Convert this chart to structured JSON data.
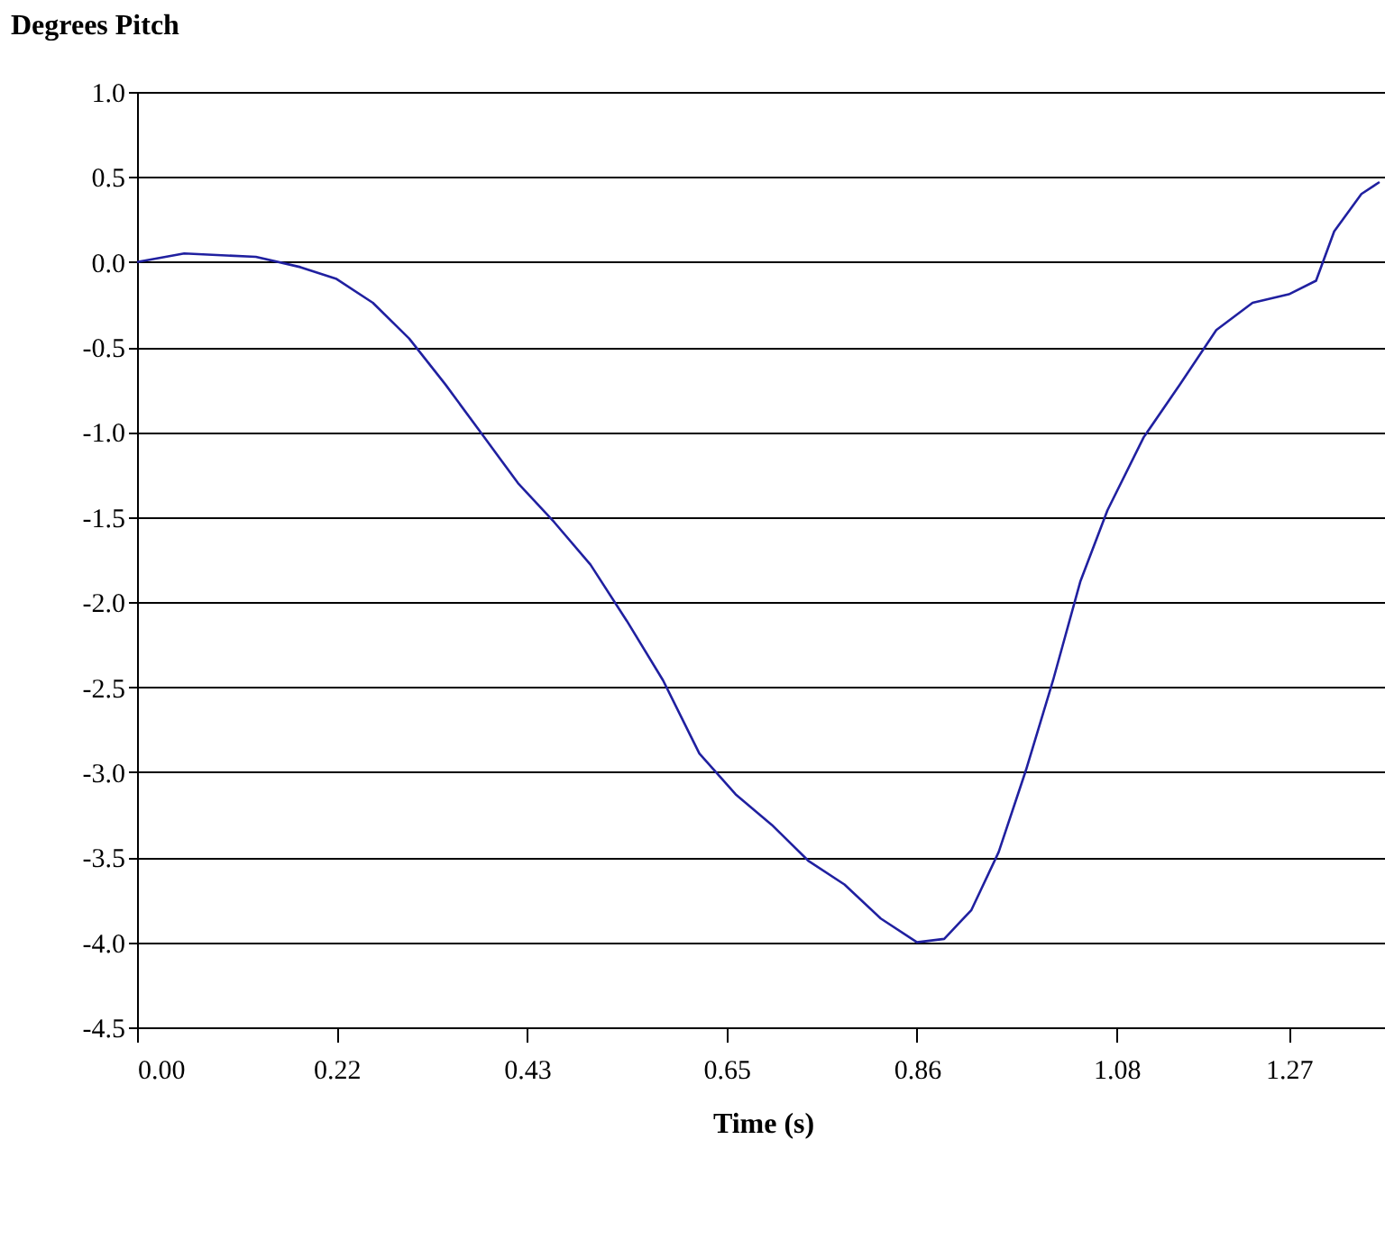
{
  "chart_data": {
    "type": "line",
    "title": "Degrees Pitch",
    "xlabel": "Time (s)",
    "x": [
      0,
      0.052,
      0.131,
      0.18,
      0.22,
      0.26,
      0.3,
      0.34,
      0.38,
      0.42,
      0.46,
      0.5,
      0.54,
      0.58,
      0.62,
      0.66,
      0.7,
      0.74,
      0.78,
      0.82,
      0.86,
      0.89,
      0.92,
      0.95,
      0.98,
      1.01,
      1.04,
      1.07,
      1.11,
      1.15,
      1.19,
      1.23,
      1.27,
      1.3,
      1.32,
      1.35,
      1.37
    ],
    "series": [
      {
        "color": "#2020a0",
        "values": [
          0,
          0.05,
          0.03,
          -0.03,
          -0.1,
          -0.24,
          -0.45,
          -0.72,
          -1.01,
          -1.3,
          -1.53,
          -1.78,
          -2.11,
          -2.46,
          -2.89,
          -3.13,
          -3.31,
          -3.52,
          -3.66,
          -3.86,
          -4.0,
          -3.98,
          -3.81,
          -3.47,
          -2.99,
          -2.46,
          -1.88,
          -1.46,
          -1.03,
          -0.72,
          -0.4,
          -0.24,
          -0.19,
          -0.11,
          0.18,
          0.4,
          0.47
        ]
      }
    ],
    "xlim": [
      0,
      1.38
    ],
    "xticks": [
      {
        "value": 0,
        "label": "0.00"
      },
      {
        "value": 0.22,
        "label": "0.22"
      },
      {
        "value": 0.43,
        "label": "0.43"
      },
      {
        "value": 0.65,
        "label": "0.65"
      },
      {
        "value": 0.86,
        "label": "0.86"
      },
      {
        "value": 1.08,
        "label": "1.08"
      },
      {
        "value": 1.27,
        "label": "1.27"
      }
    ],
    "ylim": [
      -4.5,
      1.0
    ],
    "yticks": [
      {
        "value": 1,
        "label": "1.0"
      },
      {
        "value": 0.5,
        "label": "0.5"
      },
      {
        "value": 0,
        "label": "0.0"
      },
      {
        "value": -0.5,
        "label": "-0.5"
      },
      {
        "value": -1,
        "label": "-1.0"
      },
      {
        "value": -1.5,
        "label": "-1.5"
      },
      {
        "value": -2,
        "label": "-2.0"
      },
      {
        "value": -2.5,
        "label": "-2.5"
      },
      {
        "value": -3,
        "label": "-3.0"
      },
      {
        "value": -3.5,
        "label": "-3.5"
      },
      {
        "value": -4,
        "label": "-4.0"
      },
      {
        "value": -4.5,
        "label": "-4.5"
      }
    ],
    "grid": "y",
    "marker": "none",
    "line_style": "solid"
  }
}
